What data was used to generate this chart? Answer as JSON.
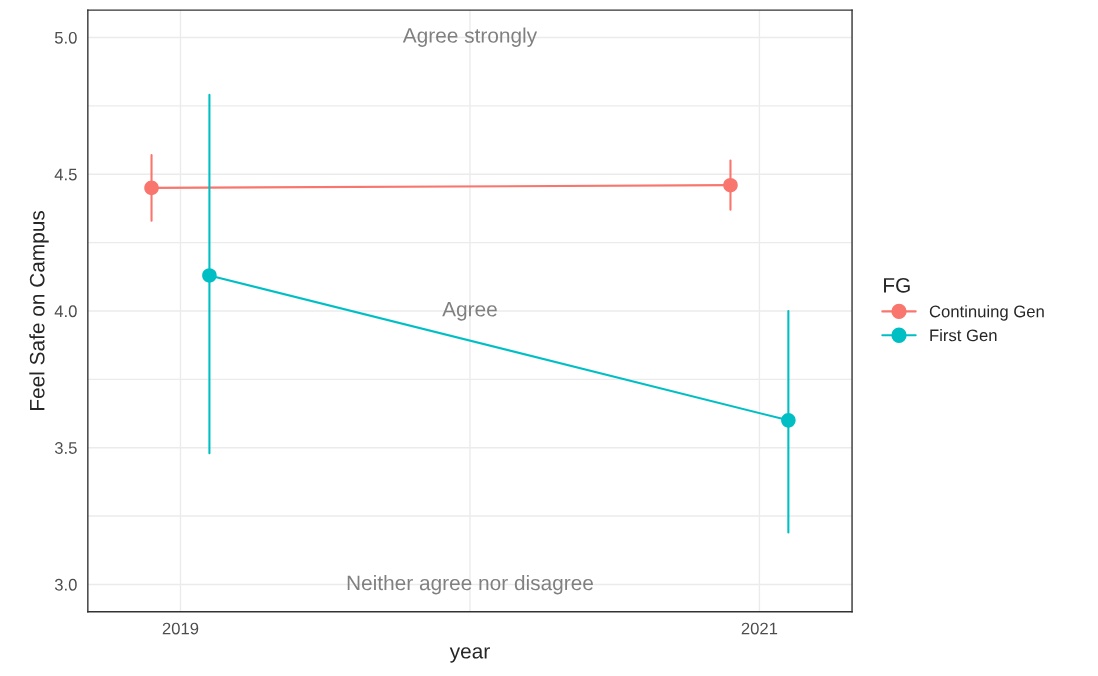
{
  "chart_data": {
    "type": "line",
    "xlabel": "year",
    "ylabel": "Feel Safe on Campus",
    "legend_title": "FG",
    "legend": "right",
    "grid": true,
    "marker": "circle",
    "line_style": "solid",
    "xlim": [
      2018.68,
      2021.32
    ],
    "xticks": [
      2019,
      2021
    ],
    "ylim": [
      2.9,
      5.1
    ],
    "yticks": [
      {
        "value": 3.0,
        "label": "3.0"
      },
      {
        "value": 3.5,
        "label": "3.5"
      },
      {
        "value": 4.0,
        "label": "4.0"
      },
      {
        "value": 4.5,
        "label": "4.5"
      },
      {
        "value": 5.0,
        "label": "5.0"
      }
    ],
    "series": [
      {
        "name": "Continuing Gen",
        "color": "#f8766d",
        "x": [
          2018.9,
          2020.9
        ],
        "values": [
          4.45,
          4.46
        ],
        "errors": [
          [
            4.33,
            4.57
          ],
          [
            4.37,
            4.55
          ]
        ]
      },
      {
        "name": "First Gen",
        "color": "#00bfc4",
        "x": [
          2019.1,
          2021.1
        ],
        "values": [
          4.13,
          3.6
        ],
        "errors": [
          [
            3.48,
            4.79
          ],
          [
            3.19,
            4.0
          ]
        ]
      }
    ],
    "annotations": [
      "Agree strongly",
      "Agree",
      "Neither agree nor disagree"
    ]
  }
}
